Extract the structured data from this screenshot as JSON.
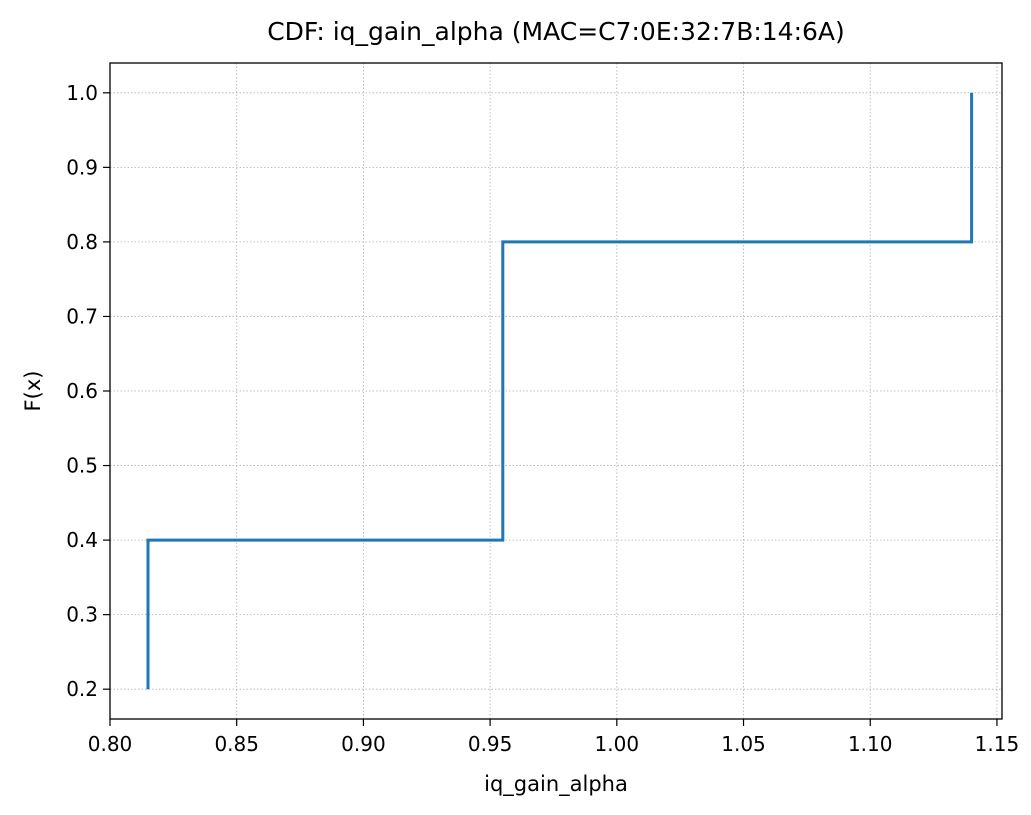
{
  "chart_data": {
    "type": "line",
    "drawstyle": "step",
    "title": "CDF: iq_gain_alpha (MAC=C7:0E:32:7B:14:6A)",
    "xlabel": "iq_gain_alpha",
    "ylabel": "F(x)",
    "xlim": [
      0.8,
      1.152
    ],
    "ylim": [
      0.16,
      1.04
    ],
    "x_ticks": [
      0.8,
      0.85,
      0.9,
      0.95,
      1.0,
      1.05,
      1.1,
      1.15
    ],
    "x_tick_labels": [
      "0.80",
      "0.85",
      "0.90",
      "0.95",
      "1.00",
      "1.05",
      "1.10",
      "1.15"
    ],
    "y_ticks": [
      0.2,
      0.3,
      0.4,
      0.5,
      0.6,
      0.7,
      0.8,
      0.9,
      1.0
    ],
    "y_tick_labels": [
      "0.2",
      "0.3",
      "0.4",
      "0.5",
      "0.6",
      "0.7",
      "0.8",
      "0.9",
      "1.0"
    ],
    "grid": true,
    "series": [
      {
        "x": [
          0.815,
          0.815,
          0.955,
          0.955,
          1.14,
          1.14
        ],
        "y": [
          0.2,
          0.4,
          0.4,
          0.8,
          0.8,
          1.0
        ],
        "color": "#1f77b4"
      }
    ]
  }
}
